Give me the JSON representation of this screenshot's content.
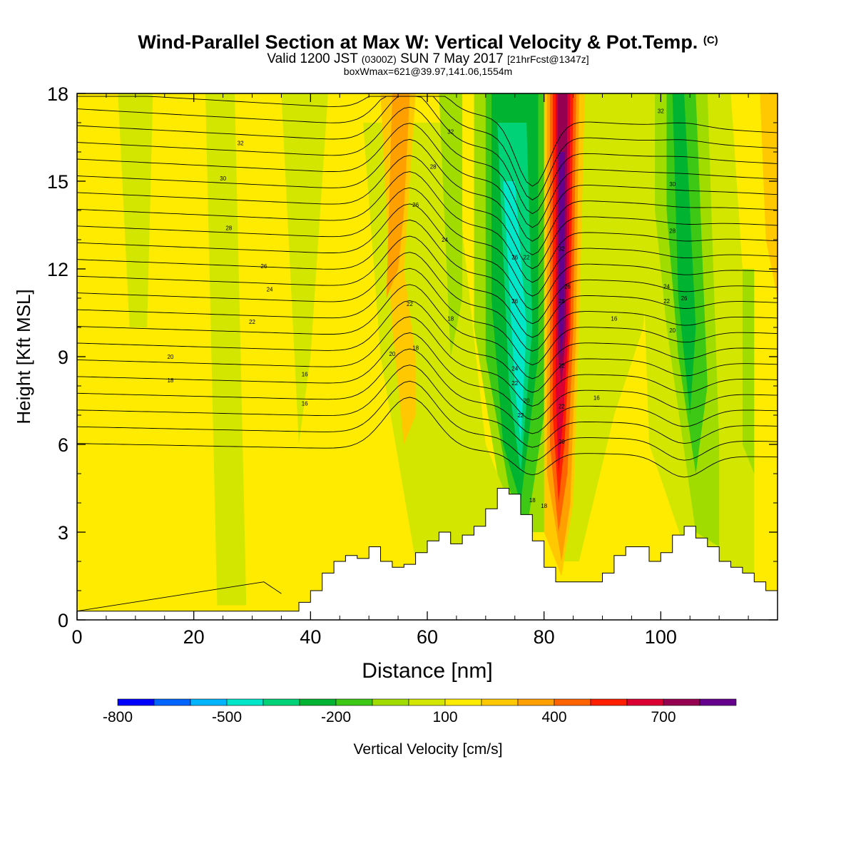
{
  "header": {
    "title": "Wind-Parallel Section at Max W: Vertical Velocity & Pot.Temp.",
    "copyright": "(C)",
    "valid_prefix": "Valid 1200 JST",
    "valid_utc": "(0300Z)",
    "valid_date": "SUN 7 May 2017",
    "forecast": "[21hrFcst@1347z]",
    "boxmax": "boxWmax=621@39.97,141.06,1554m"
  },
  "chart_data": {
    "type": "contour cross-section",
    "xlabel": "Distance [nm]",
    "ylabel": "Height [Kft MSL]",
    "xlim": [
      0,
      120
    ],
    "ylim": [
      0,
      18
    ],
    "x_ticks": [
      0,
      20,
      40,
      60,
      80,
      100
    ],
    "y_ticks": [
      0,
      3,
      6,
      9,
      12,
      15,
      18
    ],
    "terrain_profile": {
      "x": [
        0,
        34,
        38,
        40,
        42,
        44,
        46,
        48,
        50,
        52,
        54,
        56,
        58,
        60,
        62,
        64,
        66,
        68,
        70,
        72,
        74,
        76,
        78,
        80,
        82,
        84,
        86,
        88,
        90,
        92,
        94,
        96,
        98,
        100,
        102,
        104,
        106,
        108,
        110,
        112,
        114,
        116,
        118,
        120
      ],
      "height": [
        0.3,
        0.3,
        0.6,
        1.0,
        1.6,
        2.0,
        2.2,
        2.1,
        2.5,
        2.0,
        1.8,
        1.9,
        2.3,
        2.7,
        3.0,
        2.6,
        2.9,
        3.2,
        3.8,
        4.5,
        4.3,
        3.6,
        2.7,
        1.8,
        1.3,
        1.3,
        1.3,
        1.3,
        1.6,
        2.2,
        2.5,
        2.5,
        2.0,
        2.3,
        2.9,
        3.2,
        2.8,
        2.5,
        2.0,
        1.8,
        1.6,
        1.3,
        1.0,
        1.0
      ]
    },
    "vertical_velocity_features": [
      {
        "label": "strong updraft",
        "x_range": [
          80,
          86
        ],
        "max_cm_s": 800,
        "note": "narrow column, tilting with height"
      },
      {
        "label": "strong downdraft",
        "x_range": [
          72,
          80
        ],
        "min_cm_s": -500
      },
      {
        "label": "downdraft band",
        "x_range": [
          101,
          108
        ],
        "min_cm_s": -300
      },
      {
        "label": "weak updraft",
        "x_range": [
          53,
          58
        ],
        "max_cm_s": 300
      }
    ],
    "theta_contour_labels": [
      "16",
      "18",
      "20",
      "22",
      "24",
      "26",
      "28",
      "30",
      "32"
    ],
    "legend": {
      "title": "Vertical Velocity [cm/s]",
      "tick_labels": [
        "-800",
        "-500",
        "-200",
        "100",
        "400",
        "700"
      ],
      "colors": [
        "#0000ff",
        "#0064ff",
        "#00b4ff",
        "#00e6c8",
        "#00d278",
        "#00b432",
        "#3cc814",
        "#a0dc00",
        "#d2e600",
        "#ffeb00",
        "#ffc800",
        "#ffa000",
        "#ff6400",
        "#ff1e00",
        "#dc0032",
        "#960050",
        "#64008c"
      ]
    }
  }
}
